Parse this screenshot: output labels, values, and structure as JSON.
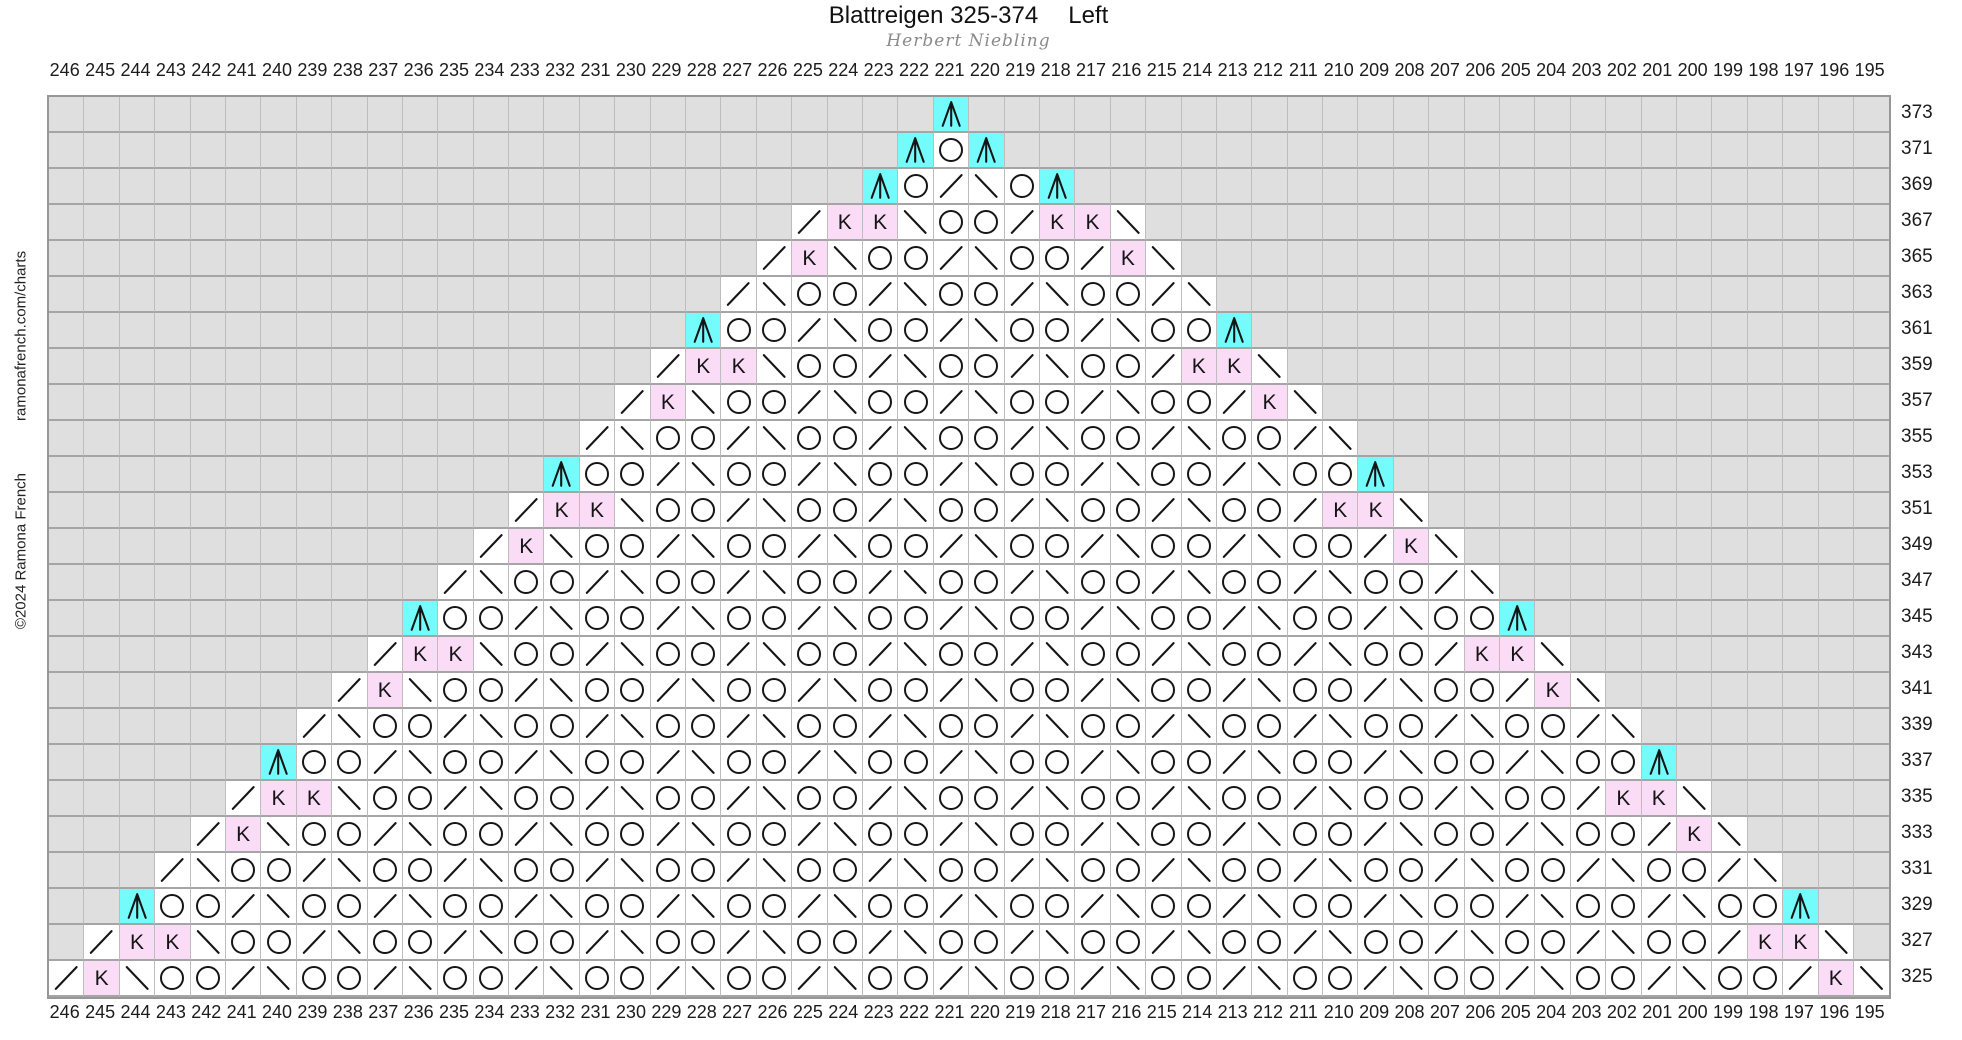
{
  "header": {
    "title": "Blattreigen 325-374",
    "side": "Left",
    "author": "Herbert Niebling"
  },
  "credits": {
    "copyright": "©2024 Ramona French",
    "website": "ramonafrench.com/charts"
  },
  "colors": {
    "double_decrease_bg": "#74fbfb",
    "k_stitch_bg": "#fadcf6",
    "no_stitch_bg": "#dfdfdf",
    "symbol_ink": "#151515"
  },
  "symbol_map": {
    "o": {
      "name": "yarn-over-symbol"
    },
    "/": {
      "name": "k2tog-symbol"
    },
    "\\": {
      "name": "ssk-symbol"
    },
    "k": {
      "name": "k-stitch-symbol",
      "bg": "pink",
      "label": "K"
    },
    "A": {
      "name": "double-decrease-symbol",
      "bg": "cyan"
    }
  },
  "chart": {
    "columns": [
      246,
      245,
      244,
      243,
      242,
      241,
      240,
      239,
      238,
      237,
      236,
      235,
      234,
      233,
      232,
      231,
      230,
      229,
      228,
      227,
      226,
      225,
      224,
      223,
      222,
      221,
      220,
      219,
      218,
      217,
      216,
      215,
      214,
      213,
      212,
      211,
      210,
      209,
      208,
      207,
      206,
      205,
      204,
      203,
      202,
      201,
      200,
      199,
      198,
      197,
      196,
      195
    ],
    "rows": [
      {
        "num": 373,
        "start": 221,
        "cells": "A"
      },
      {
        "num": 371,
        "start": 222,
        "cells": "AoA"
      },
      {
        "num": 369,
        "start": 223,
        "cells": "Ao/\\oA"
      },
      {
        "num": 367,
        "start": 225,
        "cells": "/kk\\oo/kk\\"
      },
      {
        "num": 365,
        "start": 226,
        "cells": "/k\\oo/\\oo/k\\"
      },
      {
        "num": 363,
        "start": 227,
        "cells": "/\\oo/\\oo/\\oo/\\"
      },
      {
        "num": 361,
        "start": 228,
        "cells": "Aoo/\\oo/\\oo/\\ooA"
      },
      {
        "num": 359,
        "start": 229,
        "cells": "/kk\\oo/\\oo/\\oo/kk\\"
      },
      {
        "num": 357,
        "start": 230,
        "cells": "/k\\oo/\\oo/\\oo/\\oo/k\\"
      },
      {
        "num": 355,
        "start": 231,
        "cells": "/\\oo/\\oo/\\oo/\\oo/\\oo/\\"
      },
      {
        "num": 353,
        "start": 232,
        "cells": "Aoo/\\oo/\\oo/\\oo/\\oo/\\ooA"
      },
      {
        "num": 351,
        "start": 233,
        "cells": "/kk\\oo/\\oo/\\oo/\\oo/\\oo/kk\\"
      },
      {
        "num": 349,
        "start": 234,
        "cells": "/k\\oo/\\oo/\\oo/\\oo/\\oo/\\oo/k\\"
      },
      {
        "num": 347,
        "start": 235,
        "cells": "/\\oo/\\oo/\\oo/\\oo/\\oo/\\oo/\\oo/\\"
      },
      {
        "num": 345,
        "start": 236,
        "cells": "Aoo/\\oo/\\oo/\\oo/\\oo/\\oo/\\oo/\\ooA"
      },
      {
        "num": 343,
        "start": 237,
        "cells": "/kk\\oo/\\oo/\\oo/\\oo/\\oo/\\oo/\\oo/kk\\"
      },
      {
        "num": 341,
        "start": 238,
        "cells": "/k\\oo/\\oo/\\oo/\\oo/\\oo/\\oo/\\oo/\\oo/k\\"
      },
      {
        "num": 339,
        "start": 239,
        "cells": "/\\oo/\\oo/\\oo/\\oo/\\oo/\\oo/\\oo/\\oo/\\oo/\\"
      },
      {
        "num": 337,
        "start": 240,
        "cells": "Aoo/\\oo/\\oo/\\oo/\\oo/\\oo/\\oo/\\oo/\\oo/\\ooA"
      },
      {
        "num": 335,
        "start": 241,
        "cells": "/kk\\oo/\\oo/\\oo/\\oo/\\oo/\\oo/\\oo/\\oo/\\oo/kk\\"
      },
      {
        "num": 333,
        "start": 242,
        "cells": "/k\\oo/\\oo/\\oo/\\oo/\\oo/\\oo/\\oo/\\oo/\\oo/\\oo/k\\"
      },
      {
        "num": 331,
        "start": 243,
        "cells": "/\\oo/\\oo/\\oo/\\oo/\\oo/\\oo/\\oo/\\oo/\\oo/\\oo/\\oo/\\"
      },
      {
        "num": 329,
        "start": 244,
        "cells": "Aoo/\\oo/\\oo/\\oo/\\oo/\\oo/\\oo/\\oo/\\oo/\\oo/\\oo/\\ooA"
      },
      {
        "num": 327,
        "start": 245,
        "cells": "/kk\\oo/\\oo/\\oo/\\oo/\\oo/\\oo/\\oo/\\oo/\\oo/\\oo/\\oo/kk\\"
      },
      {
        "num": 325,
        "start": 246,
        "cells": "/k\\oo/\\oo/\\oo/\\oo/\\oo/\\oo/\\oo/\\oo/\\oo/\\oo/\\oo/\\oo/k\\"
      }
    ]
  }
}
